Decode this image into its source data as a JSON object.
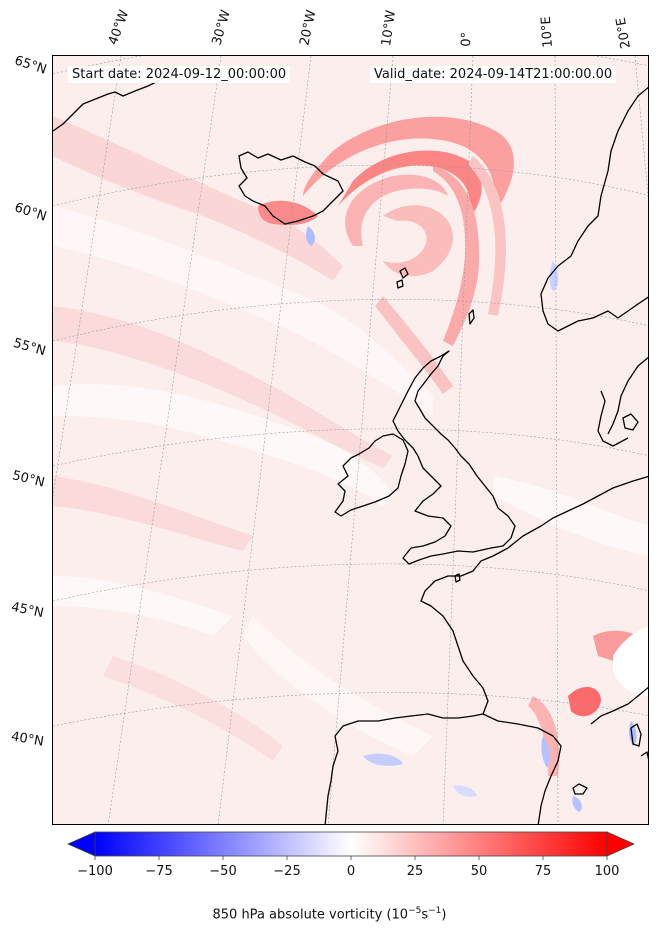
{
  "header": {
    "start_date": "Start date: 2024-09-12_00:00:00",
    "valid_date": "Valid_date: 2024-09-14T21:00:00.00"
  },
  "axes": {
    "lon_labels": [
      "40°W",
      "30°W",
      "20°W",
      "10°W",
      "0°",
      "10°E",
      "20°E"
    ],
    "lat_labels": [
      "65°N",
      "60°N",
      "55°N",
      "50°N",
      "45°N",
      "40°N"
    ]
  },
  "colorbar": {
    "label": "850 hPa absolute vorticity (10",
    "label_exp1": "−5",
    "label_mid": "s",
    "label_exp2": "−1",
    "label_end": ")",
    "ticks": [
      "−100",
      "−75",
      "−50",
      "−25",
      "0",
      "25",
      "50",
      "75",
      "100"
    ],
    "range": [
      -100,
      100
    ],
    "cmap": [
      "#0000ff",
      "#ffffff",
      "#ff0000"
    ]
  },
  "colors": {
    "background_field": "#fdeeee",
    "positive_strong": "#ff6b6b",
    "positive_mid": "#fbb8b8",
    "negative": "#c8d2ff",
    "coastline": "#000000"
  }
}
